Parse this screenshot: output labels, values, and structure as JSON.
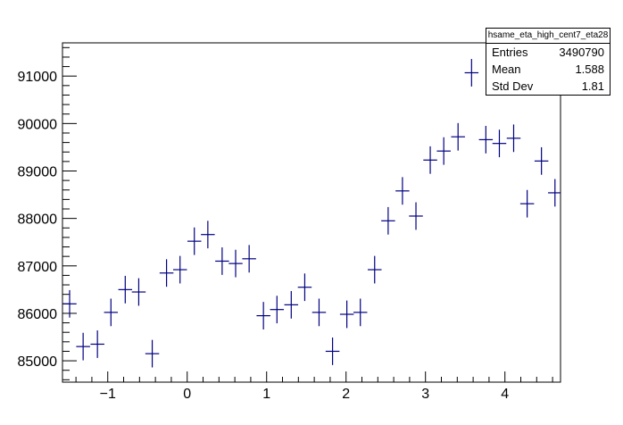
{
  "chart_data": {
    "type": "scatter",
    "title": "",
    "xlabel": "",
    "ylabel": "",
    "xlim": [
      -1.57,
      4.7
    ],
    "ylim": [
      84550,
      91700
    ],
    "xticks": [
      -1,
      0,
      1,
      2,
      3,
      4
    ],
    "yticks": [
      85000,
      86000,
      87000,
      88000,
      89000,
      90000,
      91000
    ],
    "xtick_labels": [
      "−1",
      "0",
      "1",
      "2",
      "3",
      "4"
    ],
    "ytick_labels": [
      "85000",
      "86000",
      "87000",
      "88000",
      "89000",
      "90000",
      "91000"
    ],
    "grid": false,
    "marker": "cross-with-error-bars",
    "color": "#000080",
    "bin_halfwidth": 0.087,
    "points": [
      {
        "x": -1.48,
        "y": 86200,
        "err": 290
      },
      {
        "x": -1.31,
        "y": 85300,
        "err": 290
      },
      {
        "x": -1.13,
        "y": 85350,
        "err": 290
      },
      {
        "x": -0.96,
        "y": 86020,
        "err": 290
      },
      {
        "x": -0.78,
        "y": 86500,
        "err": 290
      },
      {
        "x": -0.61,
        "y": 86450,
        "err": 290
      },
      {
        "x": -0.44,
        "y": 85150,
        "err": 290
      },
      {
        "x": -0.26,
        "y": 86850,
        "err": 290
      },
      {
        "x": -0.09,
        "y": 86920,
        "err": 290
      },
      {
        "x": 0.09,
        "y": 87520,
        "err": 290
      },
      {
        "x": 0.26,
        "y": 87660,
        "err": 290
      },
      {
        "x": 0.44,
        "y": 87100,
        "err": 290
      },
      {
        "x": 0.61,
        "y": 87050,
        "err": 290
      },
      {
        "x": 0.78,
        "y": 87150,
        "err": 290
      },
      {
        "x": 0.96,
        "y": 85950,
        "err": 290
      },
      {
        "x": 1.13,
        "y": 86080,
        "err": 290
      },
      {
        "x": 1.31,
        "y": 86180,
        "err": 290
      },
      {
        "x": 1.48,
        "y": 86550,
        "err": 290
      },
      {
        "x": 1.66,
        "y": 86020,
        "err": 290
      },
      {
        "x": 1.83,
        "y": 85200,
        "err": 290
      },
      {
        "x": 2.01,
        "y": 85980,
        "err": 290
      },
      {
        "x": 2.18,
        "y": 86020,
        "err": 290
      },
      {
        "x": 2.36,
        "y": 86920,
        "err": 290
      },
      {
        "x": 2.53,
        "y": 87950,
        "err": 290
      },
      {
        "x": 2.71,
        "y": 88580,
        "err": 290
      },
      {
        "x": 2.88,
        "y": 88050,
        "err": 290
      },
      {
        "x": 3.06,
        "y": 89230,
        "err": 290
      },
      {
        "x": 3.23,
        "y": 89420,
        "err": 290
      },
      {
        "x": 3.41,
        "y": 89720,
        "err": 290
      },
      {
        "x": 3.58,
        "y": 91070,
        "err": 290
      },
      {
        "x": 3.76,
        "y": 89660,
        "err": 290
      },
      {
        "x": 3.93,
        "y": 89580,
        "err": 290
      },
      {
        "x": 4.11,
        "y": 89690,
        "err": 290
      },
      {
        "x": 4.28,
        "y": 88310,
        "err": 290
      },
      {
        "x": 4.46,
        "y": 89210,
        "err": 290
      },
      {
        "x": 4.63,
        "y": 88540,
        "err": 290
      }
    ]
  },
  "statbox": {
    "title": "hsame_eta_high_cent7_eta28",
    "rows": [
      {
        "label": "Entries",
        "value": "3490790"
      },
      {
        "label": "Mean",
        "value": "1.588"
      },
      {
        "label": "Std Dev",
        "value": "1.81"
      }
    ]
  }
}
